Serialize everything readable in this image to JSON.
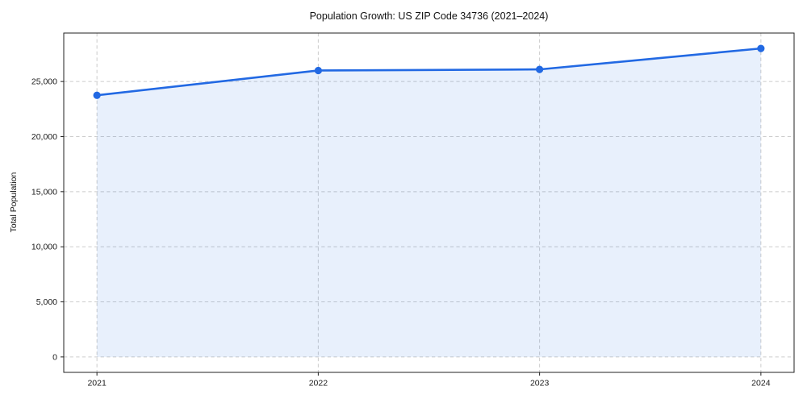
{
  "page": {
    "background_color": "#ffffff"
  },
  "chart_data": {
    "type": "line",
    "title": "Population Growth: US ZIP Code 34736 (2021–2024)",
    "xlabel": "",
    "ylabel": "Total Population",
    "x": [
      2021,
      2022,
      2023,
      2024
    ],
    "x_tick_labels": [
      "2021",
      "2022",
      "2023",
      "2024"
    ],
    "series": [
      {
        "name": "Total Population",
        "values": [
          23750,
          26000,
          26100,
          28000
        ]
      }
    ],
    "y_ticks": [
      0,
      5000,
      10000,
      15000,
      20000,
      25000
    ],
    "y_tick_labels": [
      "0",
      "5,000",
      "10,000",
      "15,000",
      "20,000",
      "25,000"
    ],
    "xlim": [
      2020.85,
      2024.15
    ],
    "ylim": [
      -1400,
      29400
    ],
    "grid": true,
    "grid_style": "dashed",
    "legend": "none",
    "area_fill_to": 0,
    "marker": "circle",
    "colors": {
      "line": "#2269e3",
      "marker": "#2269e3",
      "fill": "rgba(34, 105, 227, 0.10)",
      "grid": "#cccccc",
      "spine": "#222222",
      "text": "#1a1a1a"
    }
  }
}
